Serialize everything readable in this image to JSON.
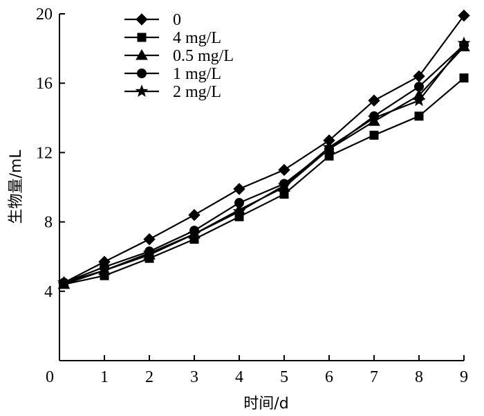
{
  "chart_data": {
    "type": "line",
    "xlabel": "时间/d",
    "ylabel": "生物量/mL",
    "xlim": [
      0,
      9
    ],
    "ylim": [
      0,
      20
    ],
    "x_ticks": [
      0,
      1,
      2,
      3,
      4,
      5,
      6,
      7,
      8,
      9
    ],
    "y_ticks": [
      4,
      8,
      12,
      16,
      20
    ],
    "grid": false,
    "legend_position": "top-left",
    "x": [
      0.1,
      1,
      2,
      3,
      4,
      5,
      6,
      7,
      8,
      9
    ],
    "series": [
      {
        "name": "0",
        "marker": "diamond",
        "color": "#000000",
        "values": [
          4.5,
          5.7,
          7.0,
          8.4,
          9.9,
          11.0,
          12.7,
          15.0,
          16.4,
          19.9
        ]
      },
      {
        "name": "4 mg/L",
        "marker": "square",
        "color": "#000000",
        "values": [
          4.4,
          4.9,
          5.9,
          7.0,
          8.3,
          9.6,
          11.8,
          13.0,
          14.1,
          16.3
        ]
      },
      {
        "name": "0.5 mg/L",
        "marker": "triangle",
        "color": "#000000",
        "values": [
          4.4,
          5.2,
          6.1,
          7.3,
          8.7,
          10.0,
          12.2,
          13.8,
          15.3,
          18.1
        ]
      },
      {
        "name": "1 mg/L",
        "marker": "circle",
        "color": "#000000",
        "values": [
          4.5,
          5.4,
          6.3,
          7.5,
          9.1,
          10.2,
          12.2,
          14.1,
          15.8,
          18.2
        ]
      },
      {
        "name": "2 mg/L",
        "marker": "star",
        "color": "#000000",
        "values": [
          4.5,
          5.2,
          6.2,
          7.3,
          8.6,
          10.1,
          12.3,
          14.0,
          15.0,
          18.3
        ]
      }
    ]
  }
}
